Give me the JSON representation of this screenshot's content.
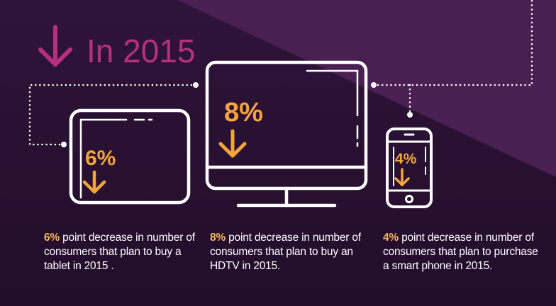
{
  "colors": {
    "bg_dark": "#2a1233",
    "bg_light": "#4b2154",
    "heading": "#b5307e",
    "accent": "#f6a53a",
    "pct_caption": "#f6b85b",
    "outline": "#ffffff"
  },
  "header": {
    "title": "In 2015",
    "icon": "arrow-down-icon"
  },
  "devices": {
    "tablet": {
      "percent": "6%",
      "pct": "6%",
      "text": " point decrease in number of consumers that plan to buy a tablet in 2015 ."
    },
    "tv": {
      "percent": "8%",
      "pct": "8%",
      "text": " point decrease in number of consumers that plan to buy an HDTV in 2015."
    },
    "phone": {
      "percent": "4%",
      "pct": "4%",
      "text": " point decrease in number of consumers that plan to purchase a smart phone in 2015."
    }
  }
}
